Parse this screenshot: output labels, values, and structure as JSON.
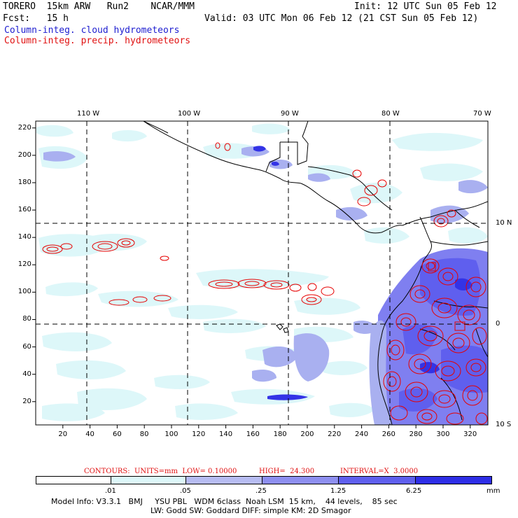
{
  "header": {
    "model": "TORERO  15km ARW   Run2    NCAR/MMM",
    "init": "Init: 12 UTC Sun 05 Feb 12",
    "fcst": "Fcst:   15 h",
    "valid": "Valid: 03 UTC Mon 06 Feb 12 (21 CST Sun 05 Feb 12)",
    "field_cloud": "Column-integ. cloud hydrometeors",
    "field_precip": "Column-integ. precip. hydrometeors"
  },
  "map": {
    "top_lon_labels": [
      "110 W",
      "100 W",
      "90 W",
      "80 W",
      "70 W"
    ],
    "right_lat_labels": [
      "10 N",
      "0",
      "10 S"
    ],
    "x_ticks": [
      "20",
      "40",
      "60",
      "80",
      "100",
      "120",
      "140",
      "160",
      "180",
      "200",
      "220",
      "240",
      "260",
      "280",
      "300",
      "320"
    ],
    "y_ticks": [
      "20",
      "40",
      "60",
      "80",
      "100",
      "120",
      "140",
      "160",
      "180",
      "200",
      "220"
    ],
    "colors": {
      "cloud_light": "#ddf7f9",
      "cloud_mid": "#a9b0f0",
      "cloud_dark": "#7f7ff0",
      "cloud_darkest": "#3333e6",
      "precip_contour": "#e60000",
      "coast": "#000000"
    }
  },
  "contour_info": {
    "contours": "CONTOURS:  UNITS=mm  LOW= 0.10000",
    "high": "HIGH=  24.300",
    "interval": "INTERVAL=X  3.0000"
  },
  "colorbar": {
    "bins": [
      {
        "color": "#ffffff"
      },
      {
        "color": "#ddf7f9"
      },
      {
        "color": "#b7bcf2"
      },
      {
        "color": "#8e8ff0"
      },
      {
        "color": "#5f5fee"
      },
      {
        "color": "#2e2ee6"
      }
    ],
    "labels": [
      ".01",
      ".05",
      ".25",
      "1.25",
      "6.25"
    ],
    "units": "mm"
  },
  "footer": {
    "line1": "Model Info: V3.3.1   BMJ     YSU PBL   WDM 6class  Noah LSM  15 km,    44 levels,    85 sec",
    "line2": "LW: Godd SW: Goddard DIFF: simple KM: 2D Smagor"
  }
}
